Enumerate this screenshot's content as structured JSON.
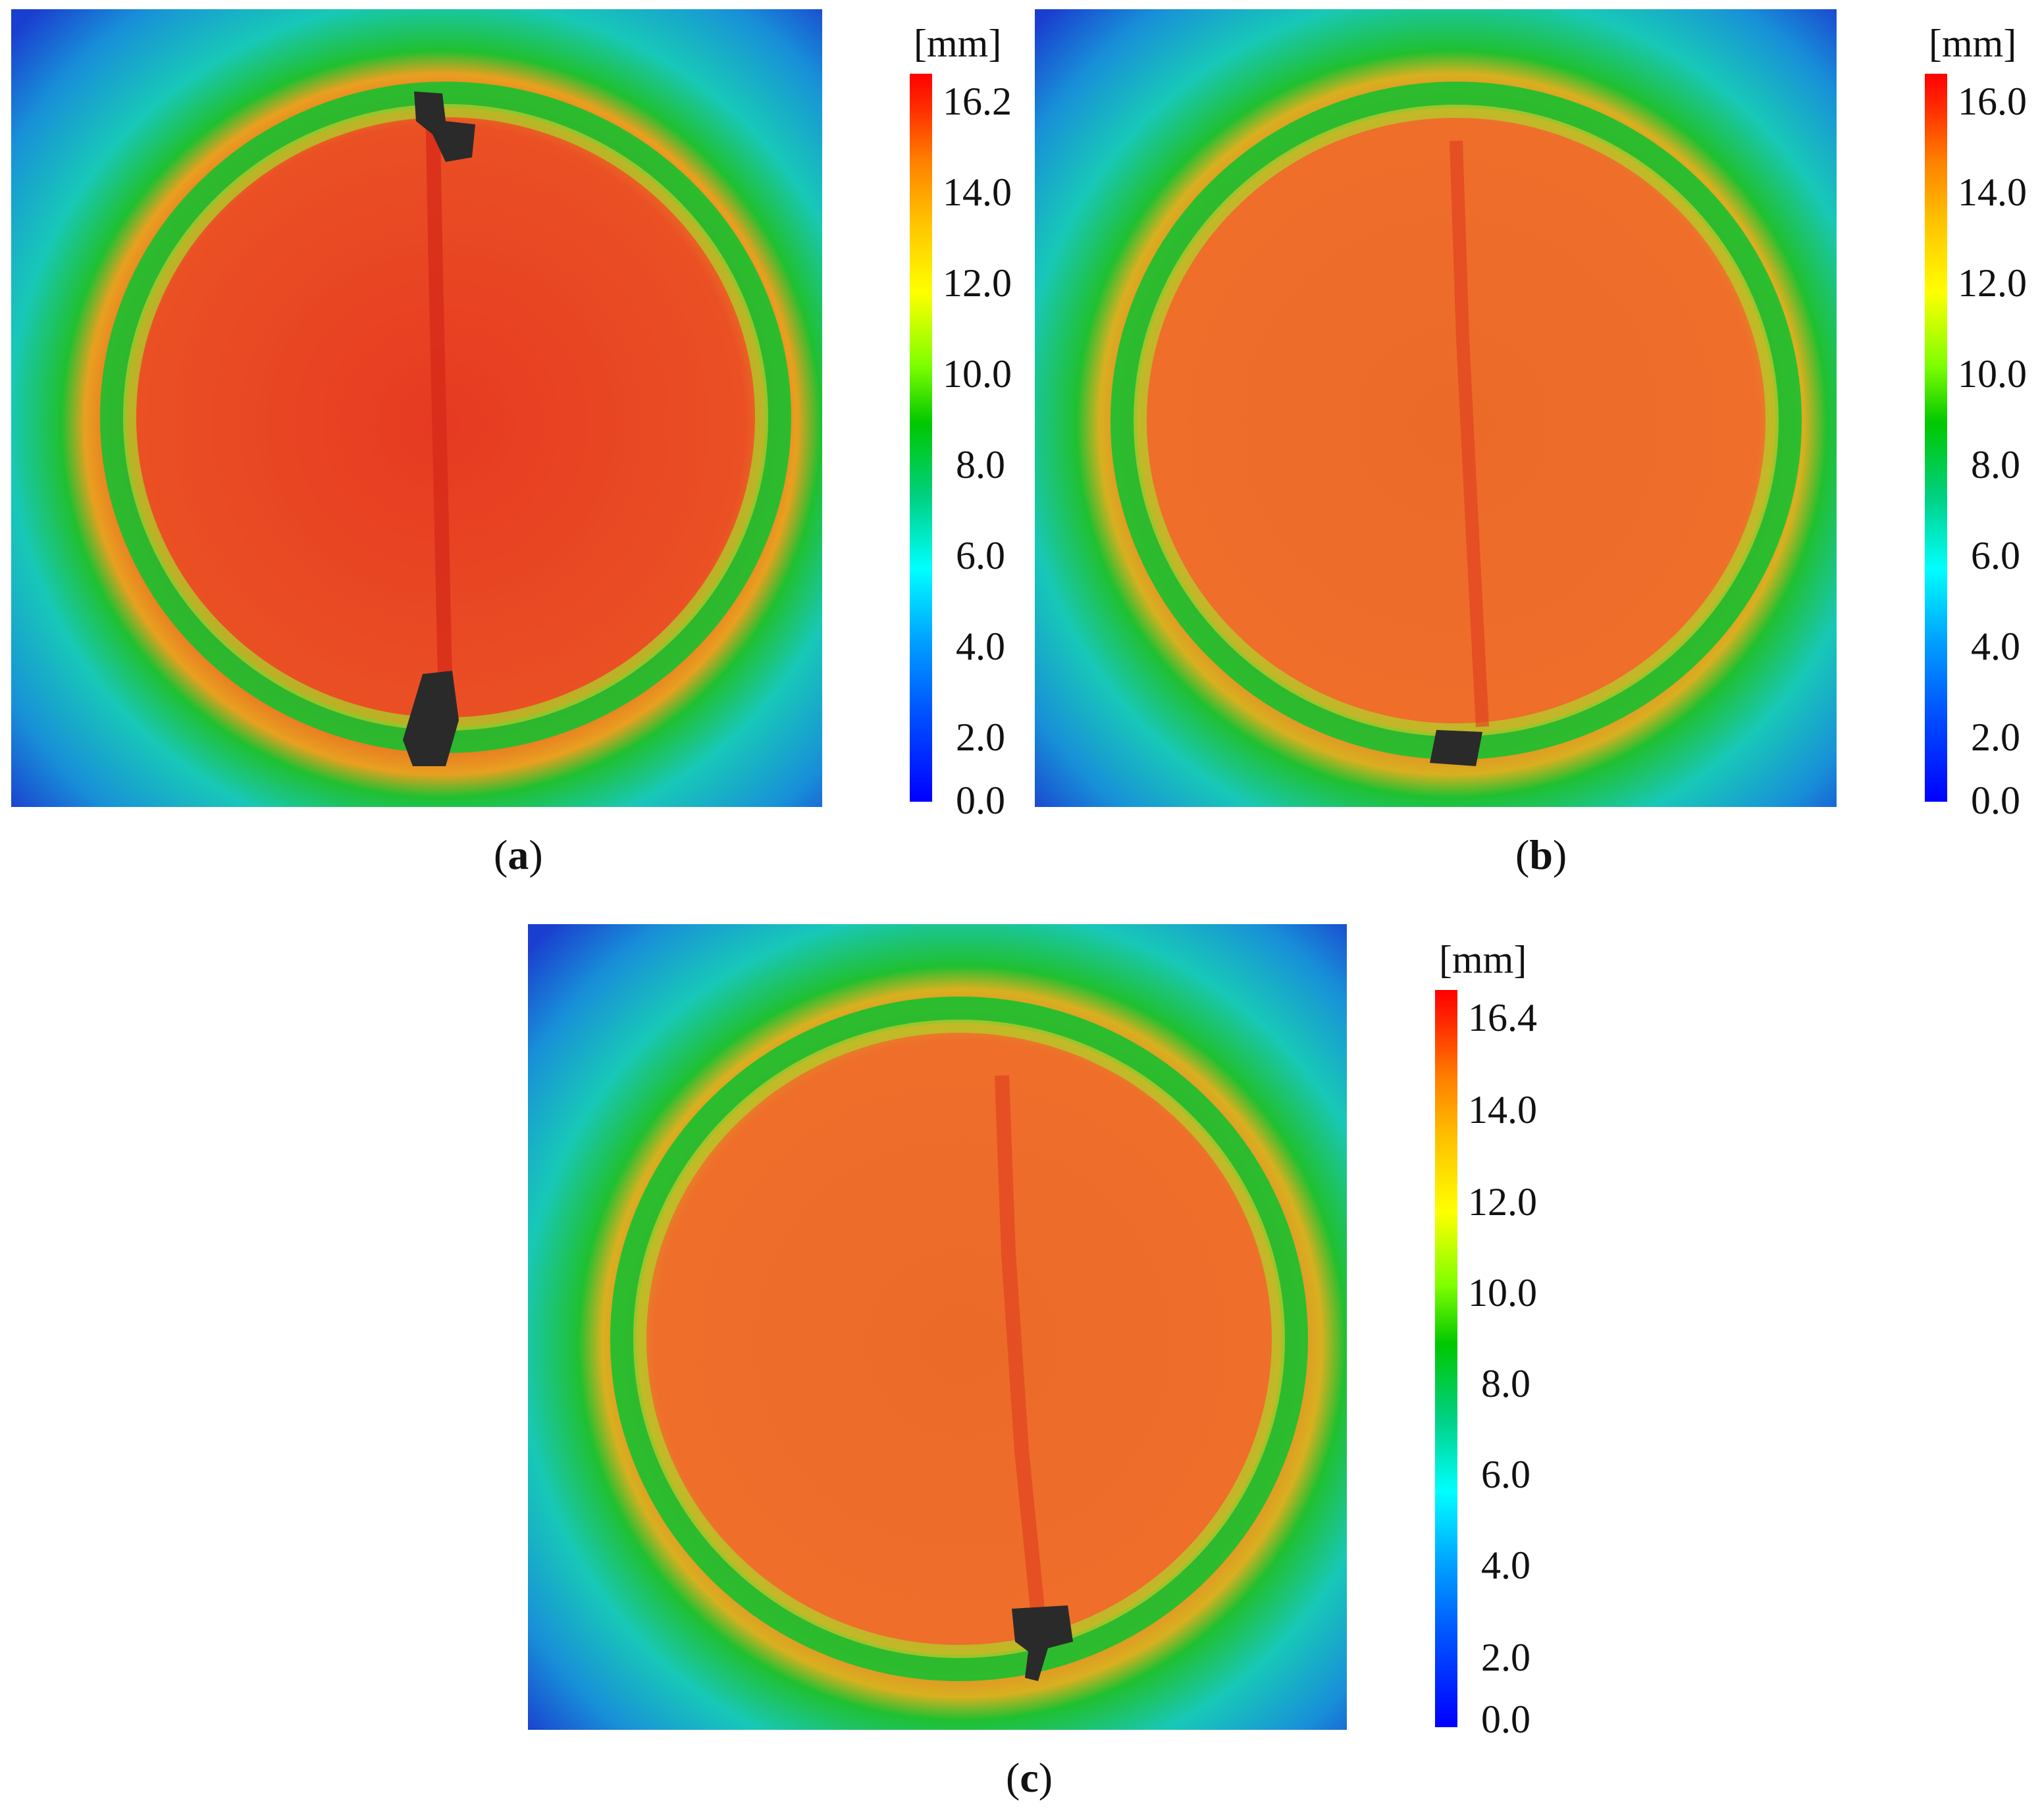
{
  "panels": [
    {
      "id": "a",
      "label_open": "(",
      "label_letter": "a",
      "label_close": ")",
      "unit": "[mm]",
      "ticks": [
        "16.2",
        "14.0",
        "12.0",
        "10.0",
        "8.0",
        "6.0",
        "4.0",
        "2.0",
        "0.0"
      ]
    },
    {
      "id": "b",
      "label_open": "(",
      "label_letter": "b",
      "label_close": ")",
      "unit": "[mm]",
      "ticks": [
        "16.0",
        "14.0",
        "12.0",
        "10.0",
        "8.0",
        "6.0",
        "4.0",
        "2.0",
        "0.0"
      ]
    },
    {
      "id": "c",
      "label_open": "(",
      "label_letter": "c",
      "label_close": ")",
      "unit": "[mm]",
      "ticks": [
        "16.4",
        "14.0",
        "12.0",
        "10.0",
        "8.0",
        "6.0",
        "4.0",
        "2.0",
        "0.0"
      ]
    }
  ],
  "colors": {
    "background_blue": "#1a3fd0",
    "cyan": "#19c8d0",
    "green": "#18c030",
    "yellow_green": "#a8d020",
    "orange": "#f07028",
    "red": "#e63020",
    "crack_dark": "#2a2a2a"
  }
}
